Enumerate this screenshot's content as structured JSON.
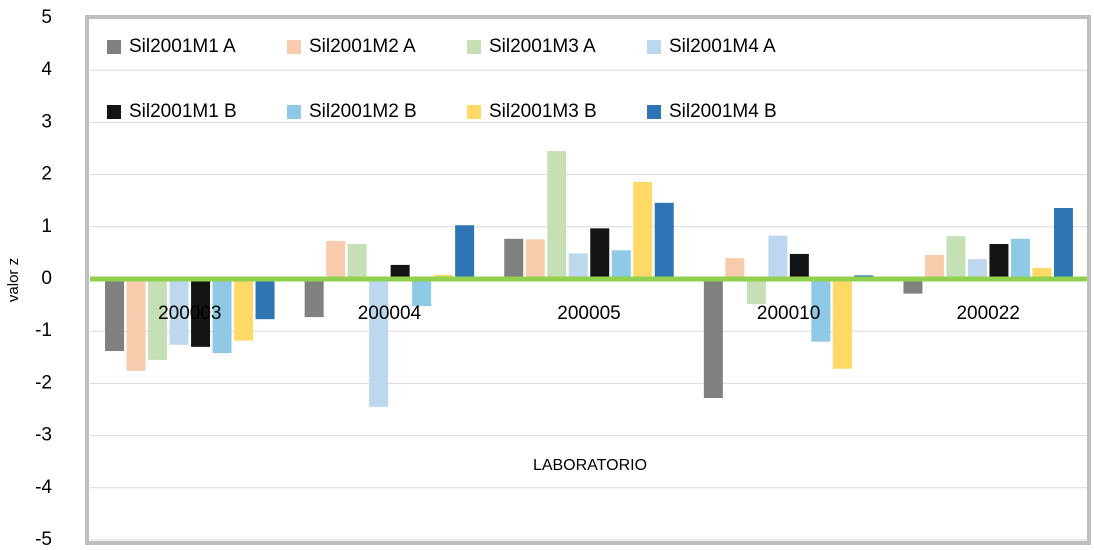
{
  "chart_data": {
    "type": "bar",
    "y_axis_label": "valor z",
    "x_axis_label": "LABORATORIO",
    "categories": [
      "200003",
      "200004",
      "200005",
      "200010",
      "200022"
    ],
    "series": [
      {
        "name": "Sil2001M1 A",
        "color": "#808080",
        "values": [
          -1.38,
          -0.73,
          0.77,
          -2.28,
          -0.28
        ]
      },
      {
        "name": "Sil2001M2 A",
        "color": "#f8cbad",
        "values": [
          -1.76,
          0.73,
          0.76,
          0.4,
          0.46
        ]
      },
      {
        "name": "Sil2001M3 A",
        "color": "#c5e0b4",
        "values": [
          -1.55,
          0.67,
          2.45,
          -0.48,
          0.82
        ]
      },
      {
        "name": "Sil2001M4 A",
        "color": "#bdd7ee",
        "values": [
          -1.26,
          -2.45,
          0.49,
          0.83,
          0.38
        ]
      },
      {
        "name": "Sil2001M1 B",
        "color": "#141414",
        "values": [
          -1.3,
          0.27,
          0.97,
          0.48,
          0.67
        ]
      },
      {
        "name": "Sil2001M2 B",
        "color": "#8ecae6",
        "values": [
          -1.42,
          -0.52,
          0.55,
          -1.2,
          0.77
        ]
      },
      {
        "name": "Sil2001M3 B",
        "color": "#ffd966",
        "values": [
          -1.18,
          0.08,
          1.86,
          -1.72,
          0.21
        ]
      },
      {
        "name": "Sil2001M4 B",
        "color": "#2e75b6",
        "values": [
          -0.77,
          1.03,
          1.46,
          0.07,
          1.36
        ]
      }
    ],
    "ylim": [
      -5,
      5
    ],
    "yticks": [
      -5,
      -4,
      -3,
      -2,
      -1,
      0,
      1,
      2,
      3,
      4,
      5
    ],
    "grid": true,
    "zero_line_color": "#92d050"
  }
}
